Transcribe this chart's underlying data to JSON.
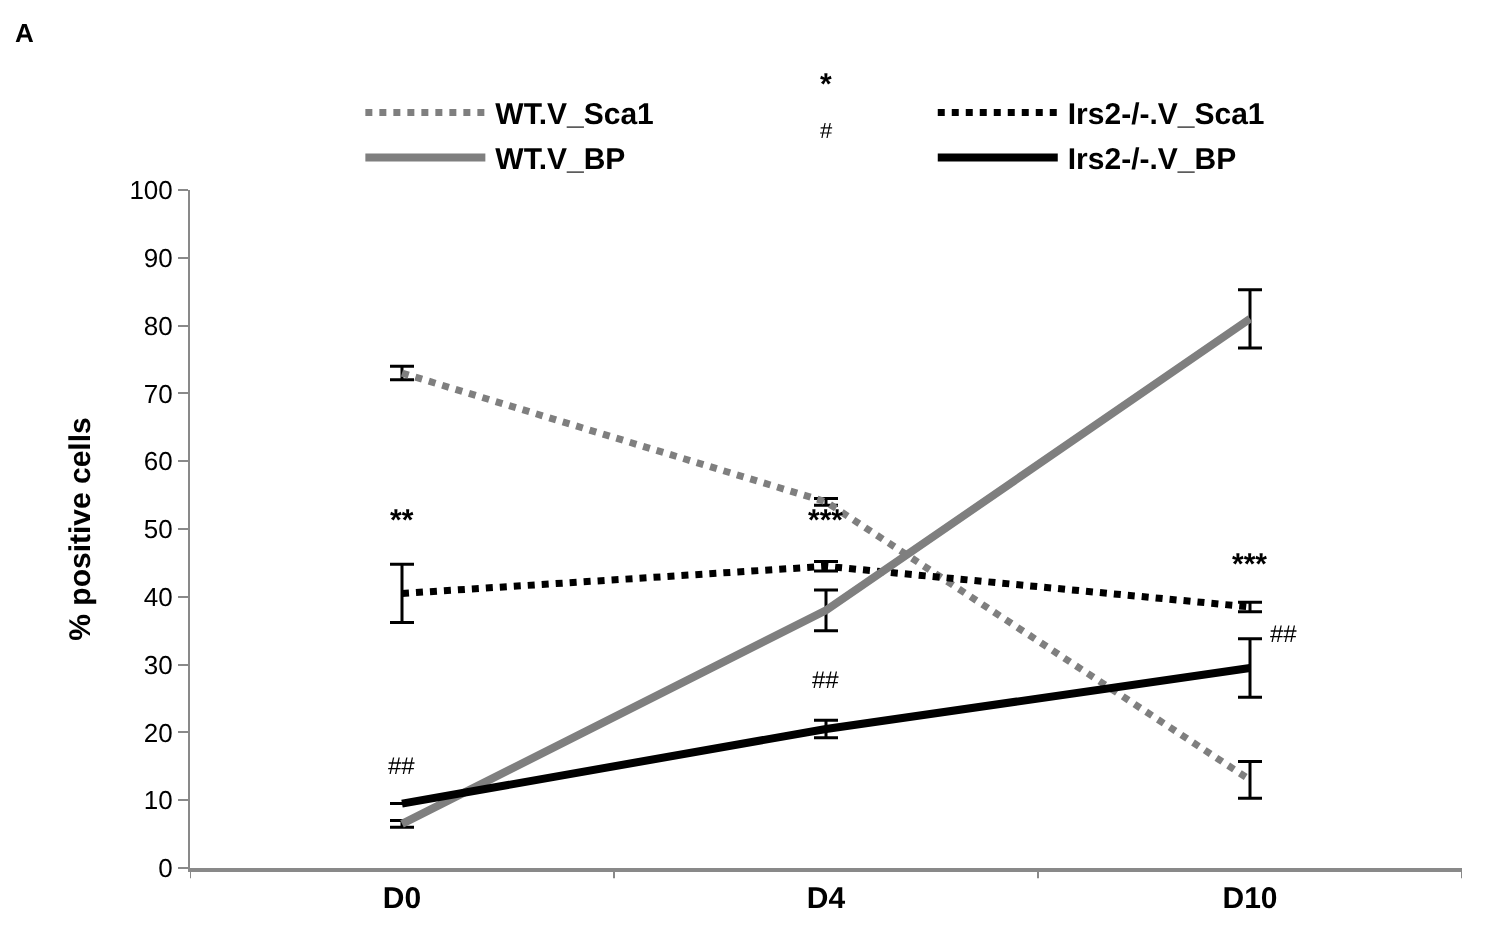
{
  "chart_data": {
    "type": "line",
    "title": "A",
    "ylabel": "% positive cells",
    "categories": [
      "D0",
      "D4",
      "D10"
    ],
    "series": [
      {
        "name": "WT.V_Sca1",
        "color": "#7f7f7f",
        "line_style": "dotted",
        "values": [
          73,
          54,
          13
        ],
        "errors": [
          1,
          0.5,
          2.7
        ]
      },
      {
        "name": "Irs2-/-.V_Sca1",
        "color": "#000000",
        "line_style": "dotted",
        "values": [
          40.5,
          44.5,
          38.5
        ],
        "errors": [
          4.3,
          0.7,
          0.7
        ]
      },
      {
        "name": "WT.V_BP",
        "color": "#7f7f7f",
        "line_style": "solid",
        "values": [
          6.5,
          38,
          81
        ],
        "errors": [
          0.5,
          3,
          4.3
        ]
      },
      {
        "name": "Irs2-/-.V_BP",
        "color": "#000000",
        "line_style": "solid",
        "values": [
          9.5,
          20.5,
          29.5
        ],
        "errors": [
          null,
          1.3,
          4.3
        ]
      }
    ],
    "ylim": [
      0,
      100
    ],
    "yticks": [
      0,
      10,
      20,
      30,
      40,
      50,
      60,
      70,
      80,
      90,
      100
    ],
    "legend": "top",
    "marker": "none",
    "annotations": [
      "*",
      "#",
      "**",
      "***",
      "***",
      "##",
      "##",
      "##"
    ]
  }
}
